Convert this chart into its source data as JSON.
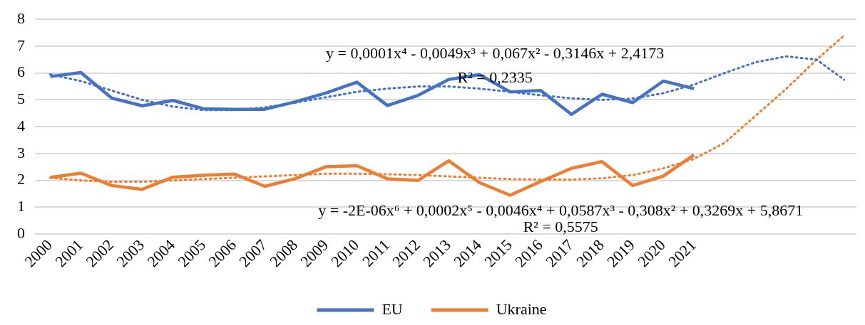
{
  "chart_data": {
    "type": "line",
    "x": [
      2000,
      2001,
      2002,
      2003,
      2004,
      2005,
      2006,
      2007,
      2008,
      2009,
      2010,
      2011,
      2012,
      2013,
      2014,
      2015,
      2016,
      2017,
      2018,
      2019,
      2020,
      2021
    ],
    "series": [
      {
        "name": "EU",
        "color": "#4472c4",
        "values": [
          5.87,
          6.02,
          5.07,
          4.78,
          4.98,
          4.67,
          4.65,
          4.65,
          4.93,
          5.26,
          5.66,
          4.79,
          5.17,
          5.76,
          5.94,
          5.3,
          5.35,
          4.46,
          5.21,
          4.9,
          5.7,
          5.42
        ]
      },
      {
        "name": "Ukraine",
        "color": "#ed7d31",
        "values": [
          2.11,
          2.27,
          1.81,
          1.67,
          2.12,
          2.19,
          2.24,
          1.78,
          2.07,
          2.51,
          2.55,
          2.06,
          2.0,
          2.73,
          1.92,
          1.45,
          1.96,
          2.45,
          2.7,
          1.81,
          2.16,
          2.95
        ]
      },
      {
        "type": "line",
        "color": "#4472c4",
        "line_style": "dotted",
        "x": [
          2000,
          2001,
          2002,
          2003,
          2004,
          2005,
          2006,
          2007,
          2008,
          2009,
          2010,
          2011,
          2012,
          2013,
          2014,
          2015,
          2016,
          2017,
          2018,
          2019,
          2020,
          2021,
          2022,
          2023,
          2024,
          2025,
          2025.9
        ],
        "values": [
          5.95,
          5.7,
          5.35,
          5.0,
          4.75,
          4.62,
          4.62,
          4.72,
          4.9,
          5.1,
          5.3,
          5.42,
          5.5,
          5.5,
          5.42,
          5.3,
          5.17,
          5.06,
          5.0,
          5.05,
          5.25,
          5.57,
          6.0,
          6.4,
          6.62,
          6.5,
          5.75
        ]
      },
      {
        "type": "line",
        "color": "#ed7d31",
        "line_style": "dotted",
        "x": [
          2000,
          2001,
          2002,
          2003,
          2004,
          2005,
          2006,
          2007,
          2008,
          2009,
          2010,
          2011,
          2012,
          2013,
          2014,
          2015,
          2016,
          2017,
          2018,
          2019,
          2020,
          2021,
          2022,
          2023,
          2024,
          2025,
          2025.9
        ],
        "values": [
          2.1,
          2.0,
          1.95,
          1.95,
          2.0,
          2.05,
          2.1,
          2.15,
          2.2,
          2.25,
          2.25,
          2.23,
          2.2,
          2.15,
          2.1,
          2.05,
          2.03,
          2.03,
          2.08,
          2.2,
          2.45,
          2.8,
          3.4,
          4.4,
          5.4,
          6.5,
          7.4
        ]
      }
    ],
    "xlim": [
      1999.5,
      2026.3
    ],
    "xticks": [
      2000,
      2001,
      2002,
      2003,
      2004,
      2005,
      2006,
      2007,
      2008,
      2009,
      2010,
      2011,
      2012,
      2013,
      2014,
      2015,
      2016,
      2017,
      2018,
      2019,
      2020,
      2021
    ],
    "ylim": [
      0,
      8
    ],
    "yticks": [
      0,
      1,
      2,
      3,
      4,
      5,
      6,
      7,
      8
    ],
    "grid": "y",
    "legend": "bottom",
    "marker": "none",
    "line_style": "solid",
    "annotations": [
      "y = 0,0001x⁴ - 0,0049x³ + 0,067x² - 0,3146x + 2,4173",
      "R² = 0,2335",
      "y = -2E-06x⁶ + 0,0002x⁵ - 0,0046x⁴ + 0,0587x³ - 0,308x² + 0,3269x + 5,8671",
      "R² = 0,5575"
    ]
  }
}
